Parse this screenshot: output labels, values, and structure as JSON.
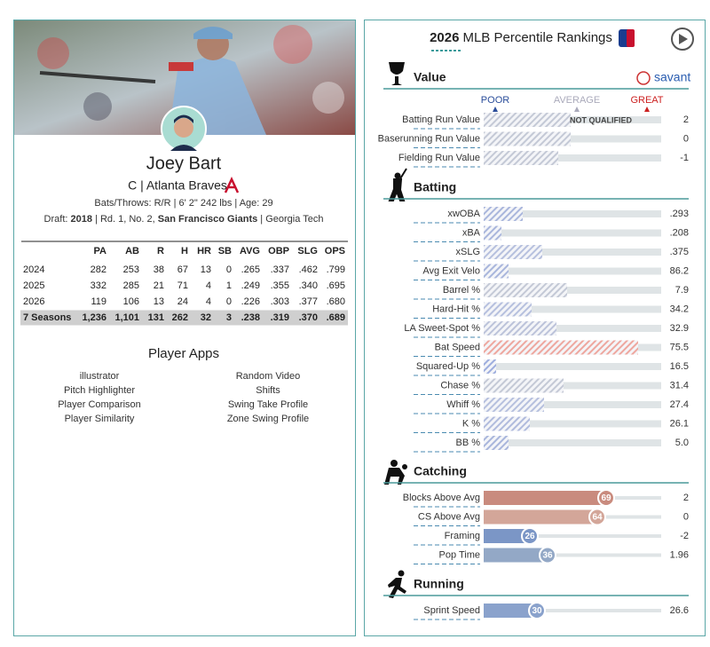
{
  "player": {
    "name": "Joey Bart",
    "position_team": "C | Atlanta Braves",
    "bio": "Bats/Throws: R/R | 6' 2\" 242 lbs | Age: 29",
    "draft": [
      {
        "text": "Draft: "
      },
      {
        "text": "2018",
        "bold": true
      },
      {
        "text": " | Rd. 1, No. 2, "
      },
      {
        "text": "San Francisco Giants",
        "bold": true
      },
      {
        "text": " | Georgia Tech"
      }
    ]
  },
  "stats": {
    "headers": [
      "PA",
      "AB",
      "R",
      "H",
      "HR",
      "SB",
      "AVG",
      "OBP",
      "SLG",
      "OPS"
    ],
    "rows": [
      {
        "label": "2024",
        "cells": [
          "282",
          "253",
          "38",
          "67",
          "13",
          "0",
          ".265",
          ".337",
          ".462",
          ".799"
        ]
      },
      {
        "label": "2025",
        "cells": [
          "332",
          "285",
          "21",
          "71",
          "4",
          "1",
          ".249",
          ".355",
          ".340",
          ".695"
        ]
      },
      {
        "label": "2026",
        "cells": [
          "119",
          "106",
          "13",
          "24",
          "4",
          "0",
          ".226",
          ".303",
          ".377",
          ".680"
        ]
      },
      {
        "label": "7 Seasons",
        "total": true,
        "cells": [
          "1,236",
          "1,101",
          "131",
          "262",
          "32",
          "3",
          ".238",
          ".319",
          ".370",
          ".689"
        ]
      }
    ]
  },
  "apps": {
    "title": "Player Apps",
    "items": [
      "illustrator",
      "Random Video",
      "Pitch Highlighter",
      "Shifts",
      "Player Comparison",
      "Swing Take Profile",
      "Player Similarity",
      "Zone Swing Profile"
    ]
  },
  "rankings": {
    "title_year": "2026",
    "title_text": "MLB Percentile Rankings",
    "badge": "savant",
    "legend": {
      "poor": "POOR",
      "average": "AVERAGE",
      "great": "GREAT"
    },
    "note": "NOT QUALIFIED"
  },
  "sections": [
    {
      "title": "Value",
      "metrics": [
        {
          "name": "Batting Run Value",
          "value": "2",
          "percentile": 49,
          "qualified": false,
          "color": "#c4c9d6"
        },
        {
          "name": "Baserunning Run Value",
          "value": "0",
          "percentile": 49,
          "qualified": false,
          "color": "#c4c9d6"
        },
        {
          "name": "Fielding Run Value",
          "value": "-1",
          "percentile": 42,
          "qualified": false,
          "color": "#c4c9d6"
        }
      ]
    },
    {
      "title": "Batting",
      "metrics": [
        {
          "name": "xwOBA",
          "value": ".293",
          "percentile": 22,
          "qualified": false,
          "color": "#a9b6dc"
        },
        {
          "name": "xBA",
          "value": ".208",
          "percentile": 10,
          "qualified": false,
          "color": "#a9b6dc"
        },
        {
          "name": "xSLG",
          "value": ".375",
          "percentile": 33,
          "qualified": false,
          "color": "#b6c0de"
        },
        {
          "name": "Avg Exit Velo",
          "value": "86.2",
          "percentile": 14,
          "qualified": false,
          "color": "#a9b6dc"
        },
        {
          "name": "Barrel %",
          "value": "7.9",
          "percentile": 47,
          "qualified": false,
          "color": "#c4c9d6"
        },
        {
          "name": "Hard-Hit %",
          "value": "34.2",
          "percentile": 27,
          "qualified": false,
          "color": "#b6c0de"
        },
        {
          "name": "LA Sweet-Spot %",
          "value": "32.9",
          "percentile": 41,
          "qualified": false,
          "color": "#bcc3da"
        },
        {
          "name": "Bat Speed",
          "value": "75.5",
          "percentile": 87,
          "qualified": false,
          "color": "#eea79f"
        },
        {
          "name": "Squared-Up %",
          "value": "16.5",
          "percentile": 7,
          "qualified": false,
          "color": "#9eaede"
        },
        {
          "name": "Chase %",
          "value": "31.4",
          "percentile": 45,
          "qualified": false,
          "color": "#c4c9d6"
        },
        {
          "name": "Whiff %",
          "value": "27.4",
          "percentile": 34,
          "qualified": false,
          "color": "#b6c0de"
        },
        {
          "name": "K %",
          "value": "26.1",
          "percentile": 26,
          "qualified": false,
          "color": "#b0bbdd"
        },
        {
          "name": "BB %",
          "value": "5.0",
          "percentile": 14,
          "qualified": false,
          "color": "#a9b6dc"
        }
      ]
    },
    {
      "title": "Catching",
      "metrics": [
        {
          "name": "Blocks Above Avg",
          "value": "2",
          "percentile": 69,
          "qualified": true,
          "color": "#c98b7e"
        },
        {
          "name": "CS Above Avg",
          "value": "0",
          "percentile": 64,
          "qualified": true,
          "color": "#d3a699"
        },
        {
          "name": "Framing",
          "value": "-2",
          "percentile": 26,
          "qualified": true,
          "color": "#7b96c6"
        },
        {
          "name": "Pop Time",
          "value": "1.96",
          "percentile": 36,
          "qualified": true,
          "color": "#93a8c6"
        }
      ]
    },
    {
      "title": "Running",
      "metrics": [
        {
          "name": "Sprint Speed",
          "value": "26.6",
          "percentile": 30,
          "qualified": true,
          "color": "#8aa2cc"
        }
      ]
    }
  ]
}
